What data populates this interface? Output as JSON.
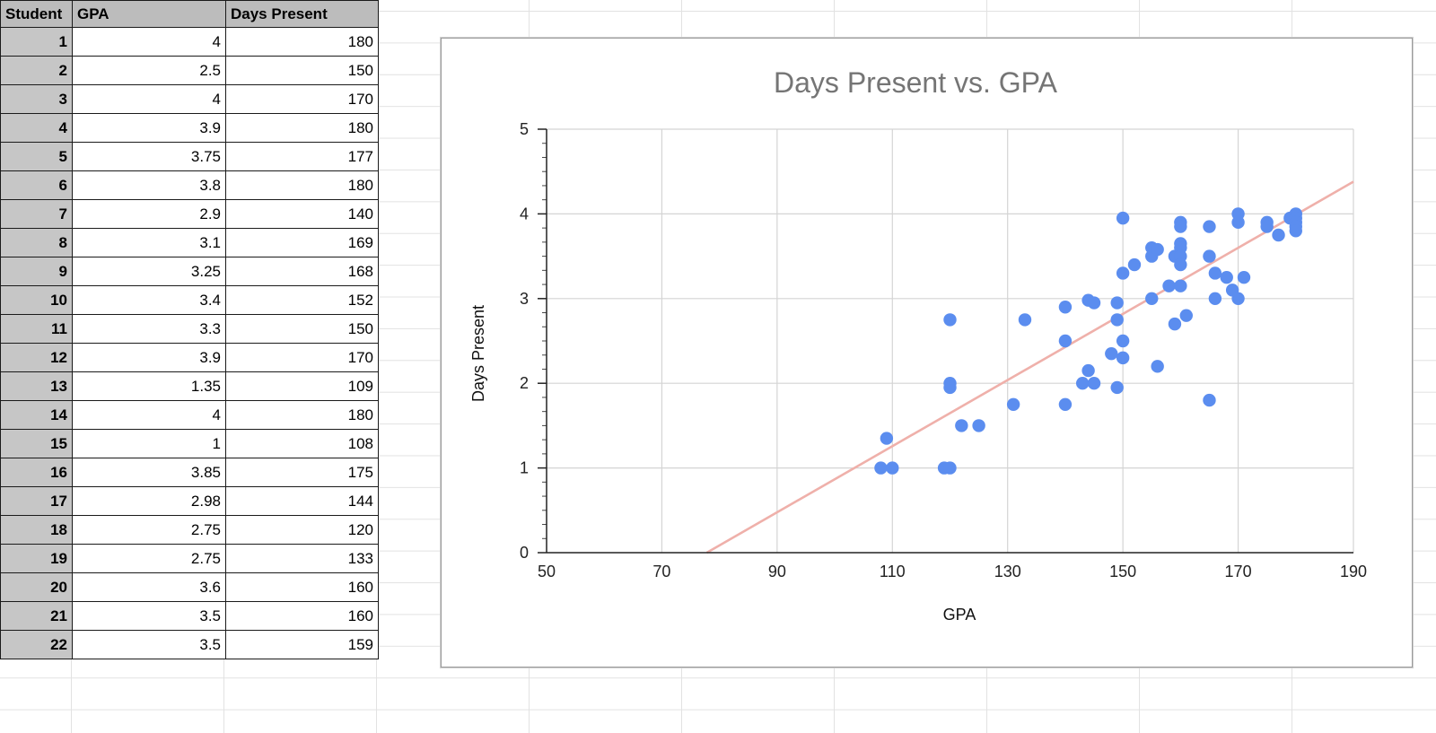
{
  "table": {
    "headers": [
      "Student",
      "GPA",
      "Days Present"
    ],
    "rows": [
      [
        "1",
        "4",
        "180"
      ],
      [
        "2",
        "2.5",
        "150"
      ],
      [
        "3",
        "4",
        "170"
      ],
      [
        "4",
        "3.9",
        "180"
      ],
      [
        "5",
        "3.75",
        "177"
      ],
      [
        "6",
        "3.8",
        "180"
      ],
      [
        "7",
        "2.9",
        "140"
      ],
      [
        "8",
        "3.1",
        "169"
      ],
      [
        "9",
        "3.25",
        "168"
      ],
      [
        "10",
        "3.4",
        "152"
      ],
      [
        "11",
        "3.3",
        "150"
      ],
      [
        "12",
        "3.9",
        "170"
      ],
      [
        "13",
        "1.35",
        "109"
      ],
      [
        "14",
        "4",
        "180"
      ],
      [
        "15",
        "1",
        "108"
      ],
      [
        "16",
        "3.85",
        "175"
      ],
      [
        "17",
        "2.98",
        "144"
      ],
      [
        "18",
        "2.75",
        "120"
      ],
      [
        "19",
        "2.75",
        "133"
      ],
      [
        "20",
        "3.6",
        "160"
      ],
      [
        "21",
        "3.5",
        "160"
      ],
      [
        "22",
        "3.5",
        "159"
      ]
    ]
  },
  "colors": {
    "point": "#5b8def",
    "trendline": "#efb0aa",
    "gridline": "#d4d4d4",
    "header_bg": "#bcbcbc"
  },
  "chart_data": {
    "type": "scatter",
    "title": "Days Present vs. GPA",
    "xlabel": "GPA",
    "ylabel": "Days Present",
    "xlim": [
      50,
      190
    ],
    "ylim": [
      0,
      5
    ],
    "xticks": [
      "50",
      "70",
      "90",
      "110",
      "130",
      "150",
      "170",
      "190"
    ],
    "yticks": [
      "0",
      "1",
      "2",
      "3",
      "4",
      "5"
    ],
    "trendline": {
      "x": [
        77.8,
        190
      ],
      "y": [
        0,
        4.38
      ]
    },
    "series": [
      {
        "name": "Days Present",
        "points": [
          [
            108,
            1
          ],
          [
            109,
            1.35
          ],
          [
            110,
            1
          ],
          [
            119,
            1
          ],
          [
            120,
            1
          ],
          [
            120,
            2
          ],
          [
            120,
            1.95
          ],
          [
            120,
            2.75
          ],
          [
            122,
            1.5
          ],
          [
            125,
            1.5
          ],
          [
            131,
            1.75
          ],
          [
            133,
            2.75
          ],
          [
            140,
            2.9
          ],
          [
            140,
            2.5
          ],
          [
            140,
            1.75
          ],
          [
            143,
            2
          ],
          [
            144,
            2.98
          ],
          [
            144,
            2.15
          ],
          [
            145,
            2.95
          ],
          [
            145,
            2
          ],
          [
            148,
            2.35
          ],
          [
            149,
            2.95
          ],
          [
            149,
            2.75
          ],
          [
            149,
            1.95
          ],
          [
            150,
            3.95
          ],
          [
            150,
            3.3
          ],
          [
            150,
            2.5
          ],
          [
            150,
            2.3
          ],
          [
            152,
            3.4
          ],
          [
            155,
            3.6
          ],
          [
            155,
            3.5
          ],
          [
            155,
            3
          ],
          [
            156,
            3.58
          ],
          [
            156,
            2.2
          ],
          [
            158,
            3.15
          ],
          [
            159,
            3.5
          ],
          [
            159,
            2.7
          ],
          [
            160,
            3.9
          ],
          [
            160,
            3.85
          ],
          [
            160,
            3.65
          ],
          [
            160,
            3.6
          ],
          [
            160,
            3.5
          ],
          [
            160,
            3.4
          ],
          [
            160,
            3.15
          ],
          [
            161,
            2.8
          ],
          [
            165,
            3.85
          ],
          [
            165,
            3.5
          ],
          [
            165,
            1.8
          ],
          [
            166,
            3.3
          ],
          [
            166,
            3
          ],
          [
            168,
            3.25
          ],
          [
            169,
            3.1
          ],
          [
            170,
            4
          ],
          [
            170,
            3.9
          ],
          [
            170,
            3
          ],
          [
            171,
            3.25
          ],
          [
            175,
            3.9
          ],
          [
            175,
            3.85
          ],
          [
            177,
            3.75
          ],
          [
            179,
            3.95
          ],
          [
            180,
            4
          ],
          [
            180,
            3.95
          ],
          [
            180,
            3.9
          ],
          [
            180,
            3.85
          ],
          [
            180,
            3.8
          ]
        ]
      }
    ]
  }
}
